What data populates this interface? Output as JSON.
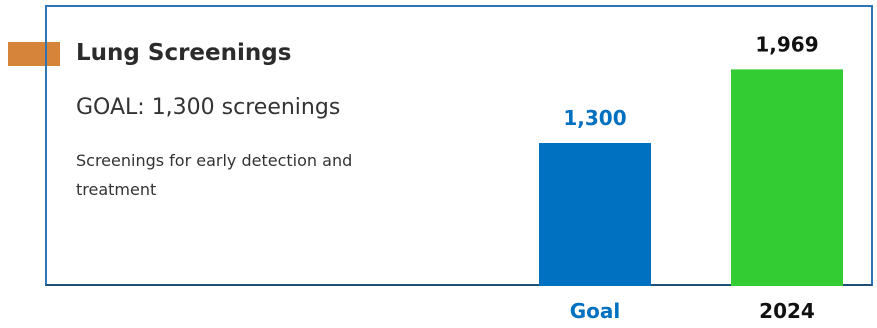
{
  "card": {
    "title": "Lung Screenings",
    "goal_text": "GOAL: 1,300 screenings",
    "description": "Screenings for early detection and treatment"
  },
  "colors": {
    "frame": "#2e75b6",
    "accent_tab": "#d5843a",
    "goal_bar": "#0070c0",
    "actual_bar": "#33cc33"
  },
  "chart_data": {
    "type": "bar",
    "categories": [
      "Goal",
      "2024"
    ],
    "values": [
      1300,
      1969
    ],
    "data_labels": [
      "1,300",
      "1,969"
    ],
    "category_colors": [
      "#0070c0",
      "#33cc33"
    ],
    "label_colors": [
      "#0070c0",
      "#111111"
    ],
    "ylim": [
      0,
      2200
    ],
    "grid": false,
    "legend": "none"
  }
}
